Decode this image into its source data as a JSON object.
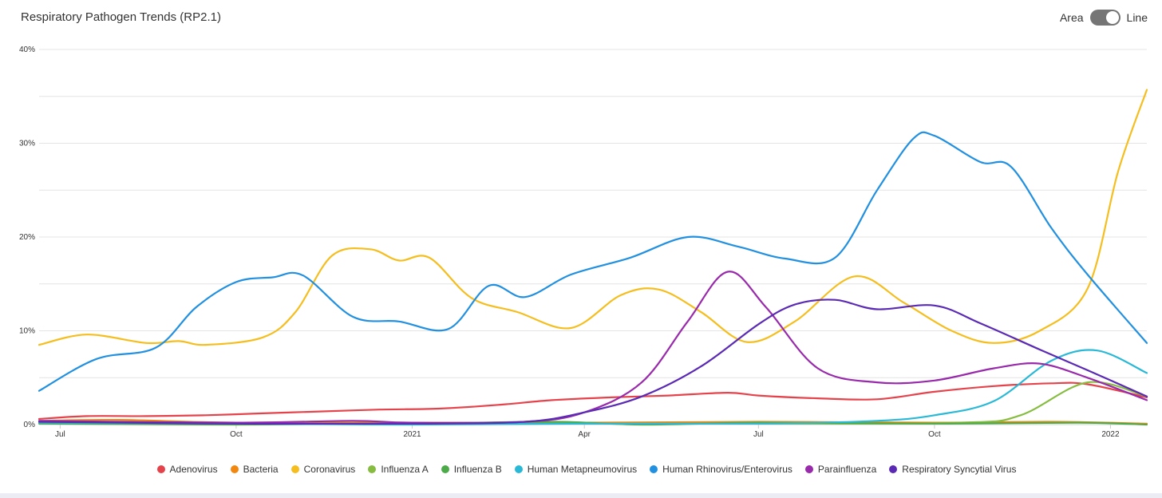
{
  "header": {
    "title": "Respiratory Pathogen Trends (RP2.1)",
    "toggle_left": "Area",
    "toggle_right": "Line"
  },
  "chart_data": {
    "type": "line",
    "title": "Respiratory Pathogen Trends (RP2.1)",
    "xlabel": "",
    "ylabel": "",
    "x_range": [
      "2020-06-20",
      "2022-01-20"
    ],
    "ylim": [
      0,
      40
    ],
    "y_ticks": [
      "0%",
      "10%",
      "20%",
      "30%",
      "40%"
    ],
    "x_ticks": [
      {
        "date": "2020-07-01",
        "label": "Jul"
      },
      {
        "date": "2020-10-01",
        "label": "Oct"
      },
      {
        "date": "2021-01-01",
        "label": "2021"
      },
      {
        "date": "2021-04-01",
        "label": "Apr"
      },
      {
        "date": "2021-07-01",
        "label": "Jul"
      },
      {
        "date": "2021-10-01",
        "label": "Oct"
      },
      {
        "date": "2022-01-01",
        "label": "2022"
      }
    ],
    "grid": true,
    "legend_position": "bottom",
    "series": [
      {
        "name": "Adenovirus",
        "color": "#e5434b",
        "points": [
          [
            "2020-06-20",
            0.6
          ],
          [
            "2020-07-15",
            0.9
          ],
          [
            "2020-08-15",
            0.9
          ],
          [
            "2020-09-15",
            1.0
          ],
          [
            "2020-10-15",
            1.2
          ],
          [
            "2020-11-15",
            1.4
          ],
          [
            "2020-12-15",
            1.6
          ],
          [
            "2021-01-15",
            1.7
          ],
          [
            "2021-02-15",
            2.1
          ],
          [
            "2021-03-15",
            2.6
          ],
          [
            "2021-04-15",
            2.9
          ],
          [
            "2021-05-15",
            3.1
          ],
          [
            "2021-06-15",
            3.4
          ],
          [
            "2021-07-01",
            3.1
          ],
          [
            "2021-08-01",
            2.8
          ],
          [
            "2021-09-01",
            2.7
          ],
          [
            "2021-10-01",
            3.5
          ],
          [
            "2021-11-01",
            4.1
          ],
          [
            "2021-12-01",
            4.4
          ],
          [
            "2021-12-20",
            4.3
          ],
          [
            "2022-01-20",
            2.9
          ]
        ]
      },
      {
        "name": "Bacteria",
        "color": "#f2870f",
        "points": [
          [
            "2020-06-20",
            0.4
          ],
          [
            "2020-08-01",
            0.5
          ],
          [
            "2020-10-01",
            0.2
          ],
          [
            "2021-01-01",
            0.2
          ],
          [
            "2021-04-01",
            0.2
          ],
          [
            "2021-07-01",
            0.3
          ],
          [
            "2021-10-01",
            0.2
          ],
          [
            "2021-12-01",
            0.3
          ],
          [
            "2022-01-20",
            0.1
          ]
        ]
      },
      {
        "name": "Coronavirus",
        "color": "#f5be1e",
        "points": [
          [
            "2020-06-20",
            8.5
          ],
          [
            "2020-07-15",
            9.6
          ],
          [
            "2020-08-15",
            8.7
          ],
          [
            "2020-09-01",
            8.9
          ],
          [
            "2020-09-15",
            8.5
          ],
          [
            "2020-10-15",
            9.3
          ],
          [
            "2020-11-01",
            12.0
          ],
          [
            "2020-11-20",
            18.0
          ],
          [
            "2020-12-10",
            18.7
          ],
          [
            "2020-12-25",
            17.5
          ],
          [
            "2021-01-10",
            17.8
          ],
          [
            "2021-02-01",
            13.5
          ],
          [
            "2021-02-25",
            12.0
          ],
          [
            "2021-03-25",
            10.3
          ],
          [
            "2021-04-20",
            13.8
          ],
          [
            "2021-05-10",
            14.4
          ],
          [
            "2021-06-01",
            12.0
          ],
          [
            "2021-06-25",
            8.8
          ],
          [
            "2021-07-20",
            11.0
          ],
          [
            "2021-08-20",
            15.8
          ],
          [
            "2021-09-15",
            13.0
          ],
          [
            "2021-10-10",
            10.0
          ],
          [
            "2021-11-01",
            8.7
          ],
          [
            "2021-11-25",
            10.0
          ],
          [
            "2021-12-20",
            14.5
          ],
          [
            "2022-01-05",
            27.0
          ],
          [
            "2022-01-20",
            35.7
          ]
        ]
      },
      {
        "name": "Influenza A",
        "color": "#86bc3f",
        "points": [
          [
            "2020-06-20",
            0.2
          ],
          [
            "2020-10-01",
            0.1
          ],
          [
            "2021-01-01",
            0.1
          ],
          [
            "2021-04-01",
            0.1
          ],
          [
            "2021-07-01",
            0.1
          ],
          [
            "2021-10-15",
            0.2
          ],
          [
            "2021-11-15",
            1.0
          ],
          [
            "2021-12-20",
            4.5
          ],
          [
            "2022-01-20",
            3.0
          ]
        ]
      },
      {
        "name": "Influenza B",
        "color": "#4caa48",
        "points": [
          [
            "2020-06-20",
            0.1
          ],
          [
            "2020-10-01",
            0.0
          ],
          [
            "2021-01-01",
            0.1
          ],
          [
            "2021-03-15",
            0.3
          ],
          [
            "2021-05-01",
            0.0
          ],
          [
            "2021-07-01",
            0.2
          ],
          [
            "2021-10-01",
            0.1
          ],
          [
            "2021-12-15",
            0.2
          ],
          [
            "2022-01-20",
            0.0
          ]
        ]
      },
      {
        "name": "Human Metapneumovirus",
        "color": "#29b9d6",
        "points": [
          [
            "2020-06-20",
            0.2
          ],
          [
            "2020-10-01",
            0.1
          ],
          [
            "2021-01-01",
            0.0
          ],
          [
            "2021-04-01",
            0.1
          ],
          [
            "2021-07-01",
            0.1
          ],
          [
            "2021-09-01",
            0.4
          ],
          [
            "2021-10-01",
            1.0
          ],
          [
            "2021-11-01",
            2.5
          ],
          [
            "2021-12-01",
            6.8
          ],
          [
            "2021-12-25",
            7.9
          ],
          [
            "2022-01-20",
            5.5
          ]
        ]
      },
      {
        "name": "Human Rhinovirus/Enterovirus",
        "color": "#2290e0",
        "points": [
          [
            "2020-06-20",
            3.6
          ],
          [
            "2020-07-20",
            7.0
          ],
          [
            "2020-08-20",
            8.2
          ],
          [
            "2020-09-10",
            12.5
          ],
          [
            "2020-10-01",
            15.2
          ],
          [
            "2020-10-20",
            15.7
          ],
          [
            "2020-11-05",
            15.9
          ],
          [
            "2020-12-01",
            11.5
          ],
          [
            "2020-12-25",
            11.0
          ],
          [
            "2021-01-20",
            10.2
          ],
          [
            "2021-02-10",
            14.8
          ],
          [
            "2021-03-01",
            13.6
          ],
          [
            "2021-03-25",
            16.0
          ],
          [
            "2021-04-25",
            17.8
          ],
          [
            "2021-05-25",
            20.0
          ],
          [
            "2021-06-20",
            19.0
          ],
          [
            "2021-07-15",
            17.7
          ],
          [
            "2021-08-10",
            17.8
          ],
          [
            "2021-09-01",
            25.0
          ],
          [
            "2021-09-20",
            30.5
          ],
          [
            "2021-10-01",
            30.8
          ],
          [
            "2021-10-25",
            28.0
          ],
          [
            "2021-11-10",
            27.5
          ],
          [
            "2021-12-01",
            21.0
          ],
          [
            "2021-12-20",
            16.0
          ],
          [
            "2022-01-20",
            8.7
          ]
        ]
      },
      {
        "name": "Parainfluenza",
        "color": "#982aab",
        "points": [
          [
            "2020-06-20",
            0.4
          ],
          [
            "2020-10-01",
            0.2
          ],
          [
            "2020-12-01",
            0.4
          ],
          [
            "2021-01-01",
            0.2
          ],
          [
            "2021-03-01",
            0.3
          ],
          [
            "2021-04-01",
            1.3
          ],
          [
            "2021-05-01",
            4.5
          ],
          [
            "2021-05-25",
            11.0
          ],
          [
            "2021-06-15",
            16.3
          ],
          [
            "2021-07-05",
            12.5
          ],
          [
            "2021-08-01",
            6.0
          ],
          [
            "2021-09-01",
            4.5
          ],
          [
            "2021-10-01",
            4.7
          ],
          [
            "2021-11-01",
            6.0
          ],
          [
            "2021-11-25",
            6.5
          ],
          [
            "2021-12-20",
            5.0
          ],
          [
            "2022-01-20",
            2.6
          ]
        ]
      },
      {
        "name": "Respiratory Syncytial Virus",
        "color": "#5a2ab4",
        "points": [
          [
            "2020-06-20",
            0.3
          ],
          [
            "2020-10-01",
            0.1
          ],
          [
            "2021-01-01",
            0.1
          ],
          [
            "2021-03-01",
            0.3
          ],
          [
            "2021-04-01",
            1.3
          ],
          [
            "2021-05-01",
            3.0
          ],
          [
            "2021-06-01",
            6.2
          ],
          [
            "2021-07-01",
            10.7
          ],
          [
            "2021-07-20",
            12.8
          ],
          [
            "2021-08-10",
            13.3
          ],
          [
            "2021-09-01",
            12.3
          ],
          [
            "2021-10-01",
            12.7
          ],
          [
            "2021-10-25",
            10.8
          ],
          [
            "2021-11-25",
            8.0
          ],
          [
            "2021-12-20",
            5.8
          ],
          [
            "2022-01-20",
            3.0
          ]
        ]
      }
    ]
  }
}
